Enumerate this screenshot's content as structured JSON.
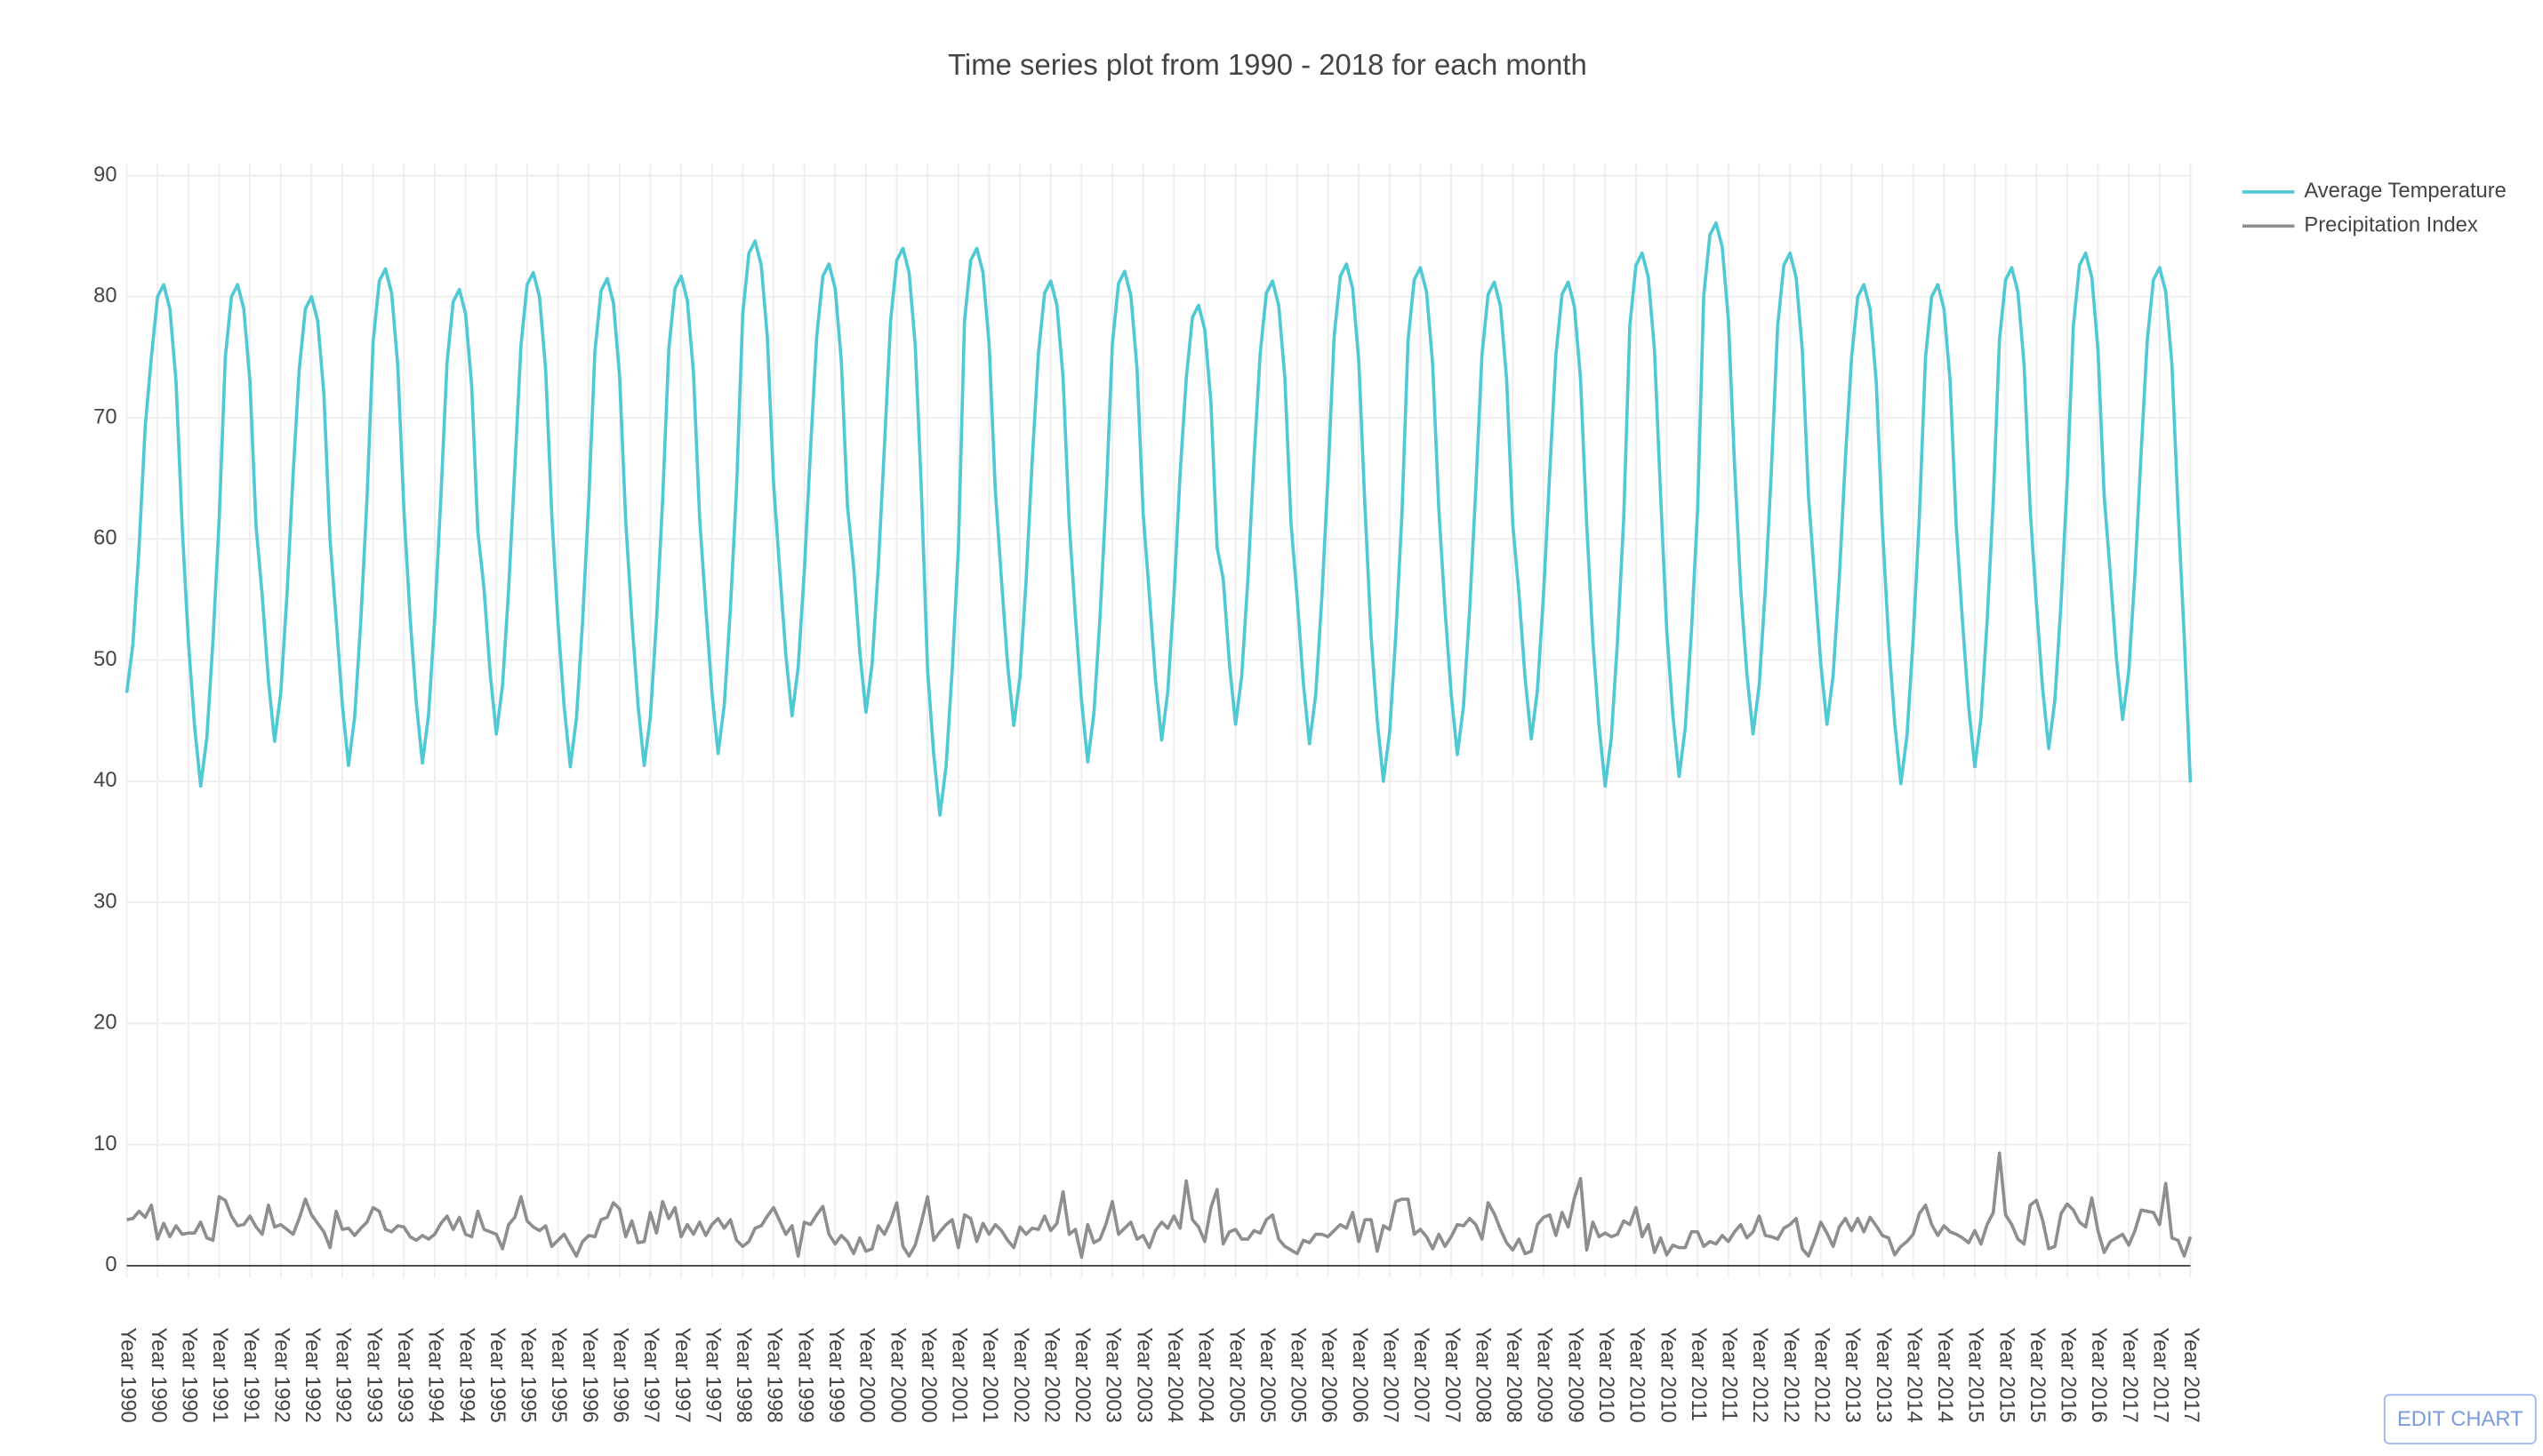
{
  "chart_data": {
    "type": "line",
    "title": "Time series plot from 1990 - 2018 for each month",
    "categories": [
      "Year 1990",
      null,
      null,
      null,
      null,
      "Year 1990",
      null,
      null,
      null,
      null,
      "Year 1990",
      null,
      null,
      null,
      null,
      "Year 1991",
      null,
      null,
      null,
      null,
      "Year 1991",
      null,
      null,
      null,
      null,
      "Year 1992",
      null,
      null,
      null,
      null,
      "Year 1992",
      null,
      null,
      null,
      null,
      "Year 1992",
      null,
      null,
      null,
      null,
      "Year 1993",
      null,
      null,
      null,
      null,
      "Year 1993",
      null,
      null,
      null,
      null,
      "Year 1994",
      null,
      null,
      null,
      null,
      "Year 1994",
      null,
      null,
      null,
      null,
      "Year 1995",
      null,
      null,
      null,
      null,
      "Year 1995",
      null,
      null,
      null,
      null,
      "Year 1995",
      null,
      null,
      null,
      null,
      "Year 1996",
      null,
      null,
      null,
      null,
      "Year 1996",
      null,
      null,
      null,
      null,
      "Year 1997",
      null,
      null,
      null,
      null,
      "Year 1997",
      null,
      null,
      null,
      null,
      "Year 1997",
      null,
      null,
      null,
      null,
      "Year 1998",
      null,
      null,
      null,
      null,
      "Year 1998",
      null,
      null,
      null,
      null,
      "Year 1999",
      null,
      null,
      null,
      null,
      "Year 1999",
      null,
      null,
      null,
      null,
      "Year 2000",
      null,
      null,
      null,
      null,
      "Year 2000",
      null,
      null,
      null,
      null,
      "Year 2000",
      null,
      null,
      null,
      null,
      "Year 2001",
      null,
      null,
      null,
      null,
      "Year 2001",
      null,
      null,
      null,
      null,
      "Year 2002",
      null,
      null,
      null,
      null,
      "Year 2002",
      null,
      null,
      null,
      null,
      "Year 2002",
      null,
      null,
      null,
      null,
      "Year 2003",
      null,
      null,
      null,
      null,
      "Year 2003",
      null,
      null,
      null,
      null,
      "Year 2004",
      null,
      null,
      null,
      null,
      "Year 2004",
      null,
      null,
      null,
      null,
      "Year 2005",
      null,
      null,
      null,
      null,
      "Year 2005",
      null,
      null,
      null,
      null,
      "Year 2005",
      null,
      null,
      null,
      null,
      "Year 2006",
      null,
      null,
      null,
      null,
      "Year 2006",
      null,
      null,
      null,
      null,
      "Year 2007",
      null,
      null,
      null,
      null,
      "Year 2007",
      null,
      null,
      null,
      null,
      "Year 2007",
      null,
      null,
      null,
      null,
      "Year 2008",
      null,
      null,
      null,
      null,
      "Year 2008",
      null,
      null,
      null,
      null,
      "Year 2009",
      null,
      null,
      null,
      null,
      "Year 2009",
      null,
      null,
      null,
      null,
      "Year 2010",
      null,
      null,
      null,
      null,
      "Year 2010",
      null,
      null,
      null,
      null,
      "Year 2010",
      null,
      null,
      null,
      null,
      "Year 2011",
      null,
      null,
      null,
      null,
      "Year 2011",
      null,
      null,
      null,
      null,
      "Year 2012",
      null,
      null,
      null,
      null,
      "Year 2012",
      null,
      null,
      null,
      null,
      "Year 2012",
      null,
      null,
      null,
      null,
      "Year 2013",
      null,
      null,
      null,
      null,
      "Year 2013",
      null,
      null,
      null,
      null,
      "Year 2014",
      null,
      null,
      null,
      null,
      "Year 2014",
      null,
      null,
      null,
      null,
      "Year 2015",
      null,
      null,
      null,
      null,
      "Year 2015",
      null,
      null,
      null,
      null,
      "Year 2015",
      null,
      null,
      null,
      null,
      "Year 2016",
      null,
      null,
      null,
      null,
      "Year 2016",
      null,
      null,
      null,
      null,
      "Year 2017",
      null,
      null,
      null,
      null,
      "Year 2017",
      null,
      null,
      null,
      null,
      "Year 2017"
    ],
    "series": [
      {
        "name": "Average Temperature",
        "color": "#4fc9d3",
        "values": [
          47.3,
          51.3,
          59.3,
          69.3,
          75,
          80,
          81,
          79,
          73,
          61,
          51.6,
          44.6,
          39.6,
          43.6,
          51.6,
          61.6,
          75,
          80,
          81,
          79,
          73,
          61,
          55.3,
          48.3,
          43.3,
          47.3,
          55.3,
          65.3,
          74,
          79,
          80,
          78,
          72,
          60,
          53.3,
          46.3,
          41.3,
          45.3,
          53.3,
          63.3,
          76.3,
          81.3,
          82.3,
          80.3,
          74.3,
          62.3,
          53.5,
          46.5,
          41.5,
          45.5,
          53.5,
          63.5,
          74.6,
          79.6,
          80.6,
          78.6,
          72.6,
          60.6,
          55.9,
          48.9,
          43.9,
          47.9,
          55.9,
          65.9,
          76,
          81,
          82,
          80,
          74,
          62,
          53.2,
          46.2,
          41.2,
          45.2,
          53.2,
          63.2,
          75.5,
          80.5,
          81.5,
          79.5,
          73.5,
          61.5,
          53.3,
          46.3,
          41.3,
          45.3,
          53.3,
          63.3,
          75.7,
          80.7,
          81.7,
          79.7,
          73.7,
          61.7,
          54.3,
          47.3,
          42.3,
          46.3,
          54.3,
          64.3,
          78.6,
          83.6,
          84.6,
          82.6,
          76.6,
          64.6,
          57.4,
          50.4,
          45.4,
          49.4,
          57.4,
          67.4,
          76.7,
          81.7,
          82.7,
          80.7,
          74.7,
          62.7,
          57.7,
          50.7,
          45.7,
          49.7,
          57.7,
          67.7,
          78,
          83,
          84,
          82,
          76,
          64,
          49.2,
          42.2,
          37.2,
          41.2,
          49.2,
          59.2,
          78,
          83,
          84,
          82,
          76,
          64,
          56.6,
          49.6,
          44.6,
          48.6,
          56.6,
          66.6,
          75.3,
          80.3,
          81.3,
          79.3,
          73.3,
          61.3,
          53.6,
          46.6,
          41.6,
          45.6,
          53.6,
          63.6,
          76.1,
          81.1,
          82.1,
          80.1,
          74.1,
          62.1,
          55.4,
          48.4,
          43.4,
          47.4,
          55.4,
          65.4,
          73.3,
          78.3,
          79.3,
          77.3,
          71.3,
          59.3,
          56.7,
          49.7,
          44.7,
          48.7,
          56.7,
          66.7,
          75.3,
          80.3,
          81.3,
          79.3,
          73.3,
          61.3,
          55.1,
          48.1,
          43.1,
          47.1,
          55.1,
          65.1,
          76.7,
          81.7,
          82.7,
          80.7,
          74.7,
          62.7,
          52,
          45,
          40,
          44,
          52,
          62,
          76.4,
          81.4,
          82.4,
          80.4,
          74.4,
          62.4,
          54.2,
          47.2,
          42.2,
          46.2,
          54.2,
          64.2,
          75.2,
          80.2,
          81.2,
          79.2,
          73.2,
          61.2,
          55.5,
          48.5,
          43.5,
          47.5,
          55.5,
          65.5,
          75.2,
          80.2,
          81.2,
          79.2,
          73.2,
          61.2,
          51.6,
          44.6,
          39.6,
          43.6,
          51.6,
          61.6,
          77.6,
          82.6,
          83.6,
          81.6,
          75.6,
          63.6,
          52.4,
          45.4,
          40.4,
          44.4,
          52.4,
          62.4,
          80.1,
          85.1,
          86.1,
          84.1,
          78.1,
          66.1,
          55.9,
          48.9,
          43.9,
          47.9,
          55.9,
          65.9,
          77.6,
          82.6,
          83.6,
          81.6,
          75.6,
          63.6,
          56.7,
          49.7,
          44.7,
          48.7,
          56.7,
          66.7,
          75,
          80,
          81,
          79,
          73,
          61,
          51.8,
          44.8,
          39.8,
          43.8,
          51.8,
          61.8,
          75,
          80,
          81,
          79,
          73,
          61,
          53.2,
          46.2,
          41.2,
          45.2,
          53.2,
          63.2,
          76.4,
          81.4,
          82.4,
          80.4,
          74.4,
          62.4,
          54.7,
          47.7,
          42.7,
          46.7,
          54.7,
          64.7,
          77.6,
          82.6,
          83.6,
          81.6,
          75.6,
          63.6,
          57.1,
          50.1,
          45.1,
          49.1,
          57.1,
          67.1,
          76.4,
          81.4,
          82.4,
          80.4,
          74.4,
          62.4,
          51.9,
          39.9
        ]
      },
      {
        "name": "Precipitation Index",
        "color": "#8e8e8e",
        "values": [
          3.8,
          3.9,
          4.5,
          4,
          5,
          2.2,
          3.5,
          2.4,
          3.3,
          2.6,
          2.7,
          2.7,
          3.6,
          2.3,
          2.1,
          5.7,
          5.4,
          4.1,
          3.3,
          3.4,
          4.1,
          3.2,
          2.6,
          5,
          3.2,
          3.4,
          3,
          2.6,
          3.9,
          5.5,
          4.2,
          3.5,
          2.8,
          1.5,
          4.5,
          3,
          3.1,
          2.5,
          3.1,
          3.6,
          4.8,
          4.5,
          3,
          2.8,
          3.3,
          3.2,
          2.4,
          2.1,
          2.5,
          2.2,
          2.6,
          3.5,
          4.1,
          3,
          4,
          2.6,
          2.4,
          4.5,
          3,
          2.8,
          2.6,
          1.4,
          3.4,
          4,
          5.7,
          3.7,
          3.2,
          2.9,
          3.3,
          1.6,
          2.1,
          2.6,
          1.7,
          0.8,
          2,
          2.5,
          2.4,
          3.8,
          4,
          5.2,
          4.7,
          2.4,
          3.7,
          1.9,
          2,
          4.4,
          2.7,
          5.3,
          3.9,
          4.8,
          2.4,
          3.4,
          2.6,
          3.6,
          2.5,
          3.4,
          3.9,
          3.1,
          3.8,
          2.1,
          1.6,
          2,
          3.1,
          3.3,
          4.1,
          4.8,
          3.7,
          2.6,
          3.3,
          0.8,
          3.6,
          3.4,
          4.2,
          4.9,
          2.6,
          1.8,
          2.5,
          2,
          1,
          2.3,
          1.2,
          1.4,
          3.3,
          2.6,
          3.7,
          5.2,
          1.6,
          0.8,
          1.7,
          3.6,
          5.7,
          2.1,
          2.8,
          3.4,
          3.8,
          1.5,
          4.2,
          3.9,
          2,
          3.5,
          2.6,
          3.4,
          2.9,
          2.1,
          1.5,
          3.2,
          2.6,
          3.1,
          3,
          4.1,
          2.9,
          3.5,
          6.1,
          2.6,
          3,
          0.7,
          3.4,
          1.9,
          2.2,
          3.5,
          5.3,
          2.6,
          3.1,
          3.6,
          2.2,
          2.5,
          1.5,
          2.9,
          3.6,
          3.1,
          4.1,
          3.1,
          7,
          3.8,
          3.2,
          2,
          4.8,
          6.3,
          1.8,
          2.8,
          3,
          2.2,
          2.2,
          2.9,
          2.7,
          3.8,
          4.2,
          2.2,
          1.6,
          1.3,
          1,
          2.1,
          1.9,
          2.6,
          2.6,
          2.4,
          2.9,
          3.4,
          3.1,
          4.4,
          2,
          3.8,
          3.8,
          1.2,
          3.3,
          3,
          5.3,
          5.5,
          5.5,
          2.6,
          3,
          2.4,
          1.4,
          2.6,
          1.6,
          2.4,
          3.4,
          3.3,
          3.9,
          3.4,
          2.2,
          5.2,
          4.3,
          3,
          1.9,
          1.3,
          2.2,
          1,
          1.2,
          3.4,
          4,
          4.2,
          2.5,
          4.4,
          3.2,
          5.6,
          7.2,
          1.3,
          3.6,
          2.4,
          2.7,
          2.4,
          2.6,
          3.7,
          3.4,
          4.8,
          2.4,
          3.4,
          1.1,
          2.3,
          0.9,
          1.7,
          1.5,
          1.5,
          2.8,
          2.8,
          1.6,
          2,
          1.8,
          2.5,
          2,
          2.8,
          3.4,
          2.3,
          2.8,
          4.1,
          2.5,
          2.4,
          2.2,
          3.1,
          3.4,
          3.9,
          1.4,
          0.8,
          2.1,
          3.6,
          2.7,
          1.6,
          3.2,
          3.9,
          2.9,
          3.9,
          2.8,
          4,
          3.3,
          2.5,
          2.3,
          0.9,
          1.6,
          2,
          2.6,
          4.3,
          5,
          3.4,
          2.5,
          3.3,
          2.8,
          2.6,
          2.3,
          1.9,
          2.9,
          1.8,
          3.4,
          4.4,
          9.3,
          4.2,
          3.4,
          2.2,
          1.8,
          5,
          5.4,
          3.8,
          1.4,
          1.6,
          4.3,
          5.1,
          4.6,
          3.6,
          3.2,
          5.6,
          2.9,
          1.1,
          2,
          2.3,
          2.6,
          1.7,
          2.9,
          4.6,
          4.5,
          4.4,
          3.4,
          6.8,
          2.3,
          2.1,
          0.8,
          2.4
        ]
      }
    ],
    "ylim": [
      -1,
      91
    ],
    "yticks": [
      0,
      10,
      20,
      30,
      40,
      50,
      60,
      70,
      80,
      90
    ],
    "grid": true,
    "legend": "top-right"
  },
  "edit_button": "EDIT CHART"
}
